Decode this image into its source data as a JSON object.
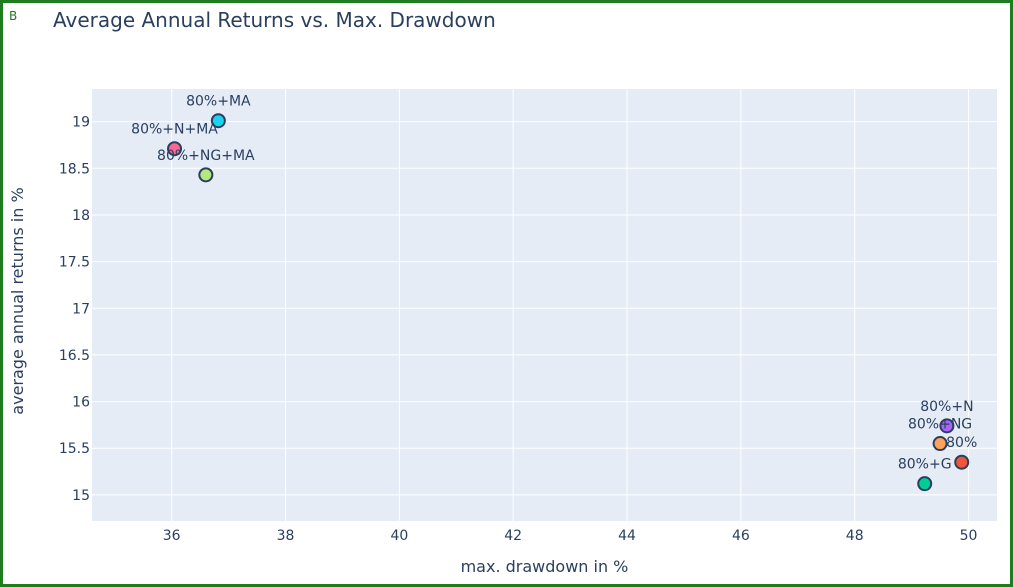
{
  "panel_label": "B",
  "chart_data": {
    "type": "scatter",
    "title": "Average Annual Returns vs. Max. Drawdown",
    "xlabel": "max. drawdown in %",
    "ylabel": "average annual returns in %",
    "xlim": [
      34.6,
      50.5
    ],
    "ylim": [
      14.72,
      19.35
    ],
    "xticks": [
      36,
      38,
      40,
      42,
      44,
      46,
      48,
      50
    ],
    "yticks": [
      15,
      15.5,
      16,
      16.5,
      17,
      17.5,
      18,
      18.5,
      19
    ],
    "grid": true,
    "legend": "none",
    "plot_background": "#e5ecf6",
    "grid_color": "#ffffff",
    "text_color": "#2a3f5f",
    "marker_outline": "#2a3f5f",
    "points": [
      {
        "label": "80%+MA",
        "x": 36.82,
        "y": 19.01,
        "color": "#19d3f3",
        "label_dx": 0,
        "label_dy": -20
      },
      {
        "label": "80%+N+MA",
        "x": 36.05,
        "y": 18.71,
        "color": "#ff6692",
        "label_dx": 0,
        "label_dy": -20
      },
      {
        "label": "80%+NG+MA",
        "x": 36.6,
        "y": 18.43,
        "color": "#b6e880",
        "label_dx": 0,
        "label_dy": -20
      },
      {
        "label": "80%+N",
        "x": 49.62,
        "y": 15.74,
        "color": "#ab63fa",
        "label_dx": 0,
        "label_dy": -20
      },
      {
        "label": "80%+NG",
        "x": 49.5,
        "y": 15.55,
        "color": "#ffa15a",
        "label_dx": 0,
        "label_dy": -20
      },
      {
        "label": "80%",
        "x": 49.88,
        "y": 15.35,
        "color": "#ef553b",
        "label_dx": 0,
        "label_dy": -20
      },
      {
        "label": "80%+G",
        "x": 49.23,
        "y": 15.12,
        "color": "#00cc96",
        "label_dx": 0,
        "label_dy": -20
      }
    ]
  }
}
